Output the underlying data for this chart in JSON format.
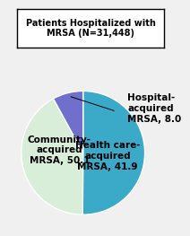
{
  "title": "Patients Hospitalized with\nMRSA (N=31,448)",
  "slices": [
    50.1,
    41.9,
    8.0
  ],
  "colors": [
    "#3aaac8",
    "#d8eed8",
    "#7070cc"
  ],
  "startangle": 90,
  "background_color": "#f0f0f0",
  "title_fontsize": 7.0,
  "label_fontsize": 7.5,
  "community_label": "Community-\nacquired\nMRSA, 50.1",
  "healthcare_label": "Health care-\nacquired\nMRSA, 41.9",
  "hospital_label": "Hospital-\nacquired\nMRSA, 8.0"
}
